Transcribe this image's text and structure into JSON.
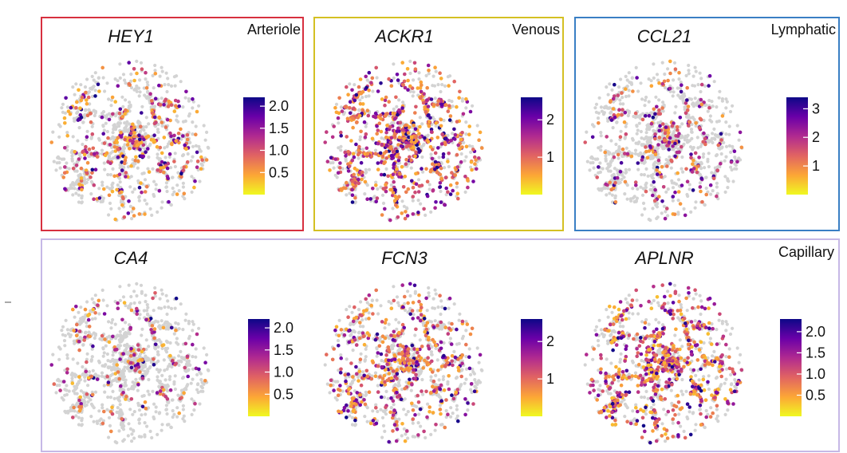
{
  "groups": [
    {
      "label": "Arteriole",
      "border_color": "#d7303f"
    },
    {
      "label": "Venous",
      "border_color": "#d4c023"
    },
    {
      "label": "Lymphatic",
      "border_color": "#3a7fc4"
    },
    {
      "label": "Capillary",
      "border_color": "#c6b8e6"
    }
  ],
  "background_color": "#d3d3d3",
  "colormap": [
    "#f0f921",
    "#fca636",
    "#e16462",
    "#b12a90",
    "#6a00a8",
    "#0d0887"
  ],
  "chart_data": [
    {
      "type": "scatter",
      "title": "HEY1",
      "group": "Arteriole",
      "color_scale": {
        "ticks": [
          "0.5",
          "1.0",
          "1.5",
          "2.0"
        ],
        "tick_values": [
          0.5,
          1.0,
          1.5,
          2.0
        ],
        "range": [
          0,
          2.2
        ]
      },
      "expression_fraction": 0.28,
      "mean_level": 0.45
    },
    {
      "type": "scatter",
      "title": "ACKR1",
      "group": "Venous",
      "color_scale": {
        "ticks": [
          "1",
          "2"
        ],
        "tick_values": [
          1,
          2
        ],
        "range": [
          0,
          2.6
        ]
      },
      "expression_fraction": 0.6,
      "mean_level": 0.5
    },
    {
      "type": "scatter",
      "title": "CCL21",
      "group": "Lymphatic",
      "color_scale": {
        "ticks": [
          "1",
          "2",
          "3"
        ],
        "tick_values": [
          1,
          2,
          3
        ],
        "range": [
          0,
          3.4
        ]
      },
      "expression_fraction": 0.2,
      "mean_level": 0.55
    },
    {
      "type": "scatter",
      "title": "CA4",
      "group": "Capillary",
      "color_scale": {
        "ticks": [
          "0.5",
          "1.0",
          "1.5",
          "2.0"
        ],
        "tick_values": [
          0.5,
          1.0,
          1.5,
          2.0
        ],
        "range": [
          0,
          2.2
        ]
      },
      "expression_fraction": 0.14,
      "mean_level": 0.4
    },
    {
      "type": "scatter",
      "title": "FCN3",
      "group": "Capillary",
      "color_scale": {
        "ticks": [
          "1",
          "2"
        ],
        "tick_values": [
          1,
          2
        ],
        "range": [
          0,
          2.6
        ]
      },
      "expression_fraction": 0.38,
      "mean_level": 0.5
    },
    {
      "type": "scatter",
      "title": "APLNR",
      "group": "Capillary",
      "color_scale": {
        "ticks": [
          "0.5",
          "1.0",
          "1.5",
          "2.0"
        ],
        "tick_values": [
          0.5,
          1.0,
          1.5,
          2.0
        ],
        "range": [
          0,
          2.3
        ]
      },
      "expression_fraction": 0.52,
      "mean_level": 0.4
    }
  ]
}
